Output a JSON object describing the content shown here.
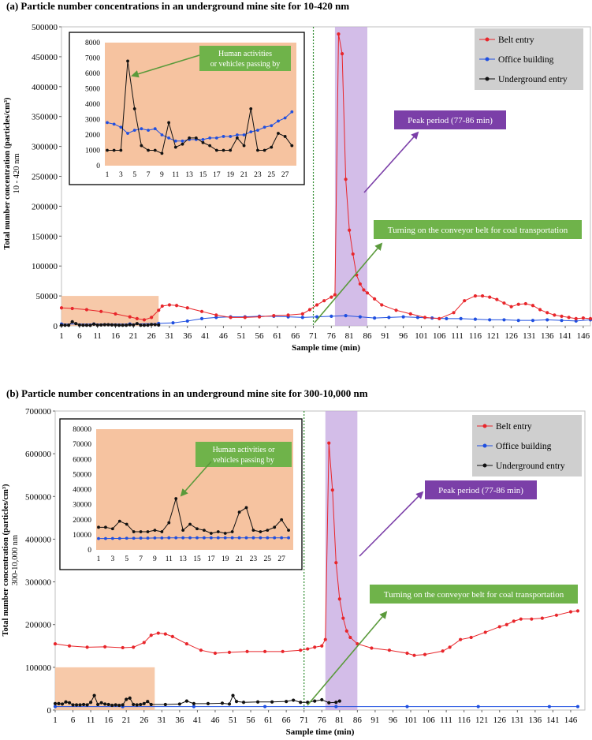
{
  "chart_data": [
    {
      "type": "line",
      "title": "(a) Particle number concentrations in an underground mine site for 10-420 nm",
      "xlabel": "Sample time (min)",
      "ylabel": "Total number concentration (particles/cm³)",
      "ylabel2": "10 - 420 nm",
      "ylim": [
        0,
        500000
      ],
      "y_ticks": [
        "0",
        "50000",
        "100000",
        "150000",
        "200000",
        "250000",
        "300000",
        "350000",
        "400000",
        "450000",
        "500000"
      ],
      "x_ticks": [
        "1",
        "6",
        "11",
        "16",
        "21",
        "26",
        "31",
        "36",
        "41",
        "46",
        "51",
        "56",
        "61",
        "66",
        "71",
        "76",
        "81",
        "86",
        "91",
        "96",
        "101",
        "106",
        "111",
        "116",
        "121",
        "126",
        "131",
        "136",
        "141",
        "146"
      ],
      "legend": [
        "Belt entry",
        "Office building",
        "Underground entry"
      ],
      "legend_position": "top-right",
      "series": [
        {
          "name": "Belt entry",
          "color": "#e8262b",
          "x": [
            1,
            4,
            8,
            12,
            16,
            20,
            22,
            24,
            26,
            28,
            29,
            31,
            33,
            36,
            40,
            44,
            48,
            52,
            56,
            60,
            64,
            68,
            70,
            72,
            74,
            76,
            77,
            78,
            79,
            80,
            81,
            82,
            83,
            84,
            85,
            86,
            88,
            90,
            94,
            98,
            102,
            106,
            110,
            113,
            116,
            118,
            120,
            122,
            124,
            126,
            128,
            130,
            132,
            134,
            136,
            138,
            140,
            142,
            144,
            146,
            148
          ],
          "values": [
            30000,
            29000,
            27000,
            24000,
            20000,
            15000,
            12000,
            10000,
            14000,
            26000,
            33000,
            35000,
            34000,
            30000,
            24000,
            18000,
            14000,
            14000,
            15000,
            17000,
            18000,
            20000,
            27000,
            35000,
            42000,
            48000,
            52000,
            488000,
            455000,
            245000,
            160000,
            120000,
            85000,
            70000,
            60000,
            55000,
            45000,
            35000,
            26000,
            20000,
            14000,
            12000,
            22000,
            42000,
            50000,
            50000,
            48000,
            44000,
            38000,
            32000,
            36000,
            37000,
            34000,
            27000,
            22000,
            18000,
            16000,
            14000,
            12000,
            13000,
            12000
          ]
        },
        {
          "name": "Office building",
          "color": "#1f4fe0",
          "x": [
            1,
            10,
            20,
            28,
            32,
            36,
            40,
            44,
            48,
            52,
            56,
            60,
            64,
            68,
            72,
            76,
            80,
            84,
            88,
            92,
            96,
            100,
            104,
            108,
            112,
            116,
            120,
            124,
            128,
            132,
            136,
            140,
            144,
            148
          ],
          "values": [
            3000,
            3000,
            3000,
            4000,
            5000,
            8000,
            12000,
            14000,
            15000,
            15000,
            16000,
            16000,
            15000,
            14000,
            15000,
            16000,
            17000,
            15000,
            13000,
            14000,
            15000,
            14000,
            13000,
            12000,
            12000,
            11000,
            10000,
            10000,
            9000,
            9000,
            10000,
            9000,
            8000,
            10000
          ]
        },
        {
          "name": "Underground entry",
          "color": "#111111",
          "x": [
            1,
            2,
            3,
            4,
            5,
            6,
            7,
            8,
            9,
            10,
            11,
            12,
            13,
            14,
            15,
            16,
            17,
            18,
            19,
            20,
            21,
            22,
            23,
            24,
            25,
            26,
            27,
            28
          ],
          "values": [
            1000,
            1000,
            1000,
            6800,
            3700,
            1300,
            1000,
            1000,
            800,
            2800,
            1200,
            1400,
            1800,
            1800,
            1500,
            1300,
            1000,
            1000,
            1000,
            1800,
            1300,
            3700,
            1000,
            1000,
            1200,
            2100,
            1900,
            1300
          ]
        }
      ],
      "inset": {
        "ylim": [
          0,
          8000
        ],
        "y_ticks": [
          "0",
          "1000",
          "2000",
          "3000",
          "4000",
          "5000",
          "6000",
          "7000",
          "8000"
        ],
        "x_ticks": [
          "1",
          "3",
          "5",
          "7",
          "9",
          "11",
          "13",
          "15",
          "17",
          "19",
          "21",
          "23",
          "25",
          "27"
        ],
        "series": [
          {
            "name": "Office building",
            "color": "#1f4fe0",
            "x": [
              1,
              2,
              3,
              4,
              5,
              6,
              7,
              8,
              9,
              10,
              11,
              12,
              13,
              14,
              15,
              16,
              17,
              18,
              19,
              20,
              21,
              22,
              23,
              24,
              25,
              26,
              27,
              28
            ],
            "values": [
              2800,
              2700,
              2500,
              2100,
              2300,
              2400,
              2300,
              2400,
              2000,
              1800,
              1600,
              1600,
              1700,
              1700,
              1700,
              1800,
              1800,
              1900,
              1900,
              2000,
              2000,
              2200,
              2300,
              2500,
              2600,
              2900,
              3100,
              3500
            ]
          },
          {
            "name": "Underground entry",
            "color": "#111111",
            "x": [
              1,
              2,
              3,
              4,
              5,
              6,
              7,
              8,
              9,
              10,
              11,
              12,
              13,
              14,
              15,
              16,
              17,
              18,
              19,
              20,
              21,
              22,
              23,
              24,
              25,
              26,
              27,
              28
            ],
            "values": [
              1000,
              1000,
              1000,
              6800,
              3700,
              1300,
              1000,
              1000,
              800,
              2800,
              1200,
              1400,
              1800,
              1800,
              1500,
              1300,
              1000,
              1000,
              1000,
              1800,
              1300,
              3700,
              1000,
              1000,
              1200,
              2100,
              1900,
              1300
            ]
          }
        ]
      },
      "annotations": {
        "human": "Human activities\nor vehicles passing by",
        "peak": "Peak period (77-86 min)",
        "conveyor": "Turning on the conveyor belt for coal transportation"
      },
      "peak_range": [
        77,
        86
      ],
      "conveyor_line_x": 71,
      "inset_region": {
        "x": [
          1,
          28
        ],
        "y": [
          0,
          50000
        ]
      }
    },
    {
      "type": "line",
      "title": "(b) Particle number concentrations in an underground mine site for 300-10,000 nm",
      "xlabel": "Sample time (min)",
      "ylabel": "Total number concentration (particles/cm³)",
      "ylabel2": "300-10,000 nm",
      "ylim": [
        0,
        700000
      ],
      "y_ticks": [
        "0",
        "100000",
        "200000",
        "300000",
        "400000",
        "500000",
        "600000",
        "700000"
      ],
      "x_ticks": [
        "1",
        "6",
        "11",
        "16",
        "21",
        "26",
        "31",
        "36",
        "41",
        "46",
        "51",
        "56",
        "61",
        "66",
        "71",
        "76",
        "81",
        "86",
        "91",
        "96",
        "101",
        "106",
        "111",
        "116",
        "121",
        "126",
        "131",
        "136",
        "141",
        "146"
      ],
      "legend": [
        "Belt entry",
        "Office building",
        "Underground entry"
      ],
      "legend_position": "top-right",
      "series": [
        {
          "name": "Belt entry",
          "color": "#e8262b",
          "x": [
            1,
            5,
            10,
            15,
            20,
            23,
            26,
            28,
            30,
            32,
            34,
            38,
            42,
            46,
            50,
            55,
            60,
            65,
            70,
            72,
            74,
            76,
            77,
            78,
            79,
            80,
            81,
            82,
            83,
            84,
            86,
            90,
            95,
            100,
            102,
            105,
            110,
            112,
            115,
            118,
            122,
            126,
            128,
            130,
            132,
            135,
            138,
            142,
            146,
            148
          ],
          "values": [
            155000,
            150000,
            147000,
            148000,
            146000,
            147000,
            158000,
            175000,
            180000,
            178000,
            172000,
            155000,
            140000,
            133000,
            135000,
            137000,
            137000,
            137000,
            140000,
            143000,
            147000,
            150000,
            165000,
            625000,
            515000,
            345000,
            260000,
            215000,
            185000,
            170000,
            155000,
            145000,
            140000,
            133000,
            128000,
            130000,
            138000,
            147000,
            165000,
            170000,
            182000,
            195000,
            200000,
            208000,
            213000,
            213000,
            215000,
            222000,
            230000,
            232000
          ]
        },
        {
          "name": "Office building",
          "color": "#1f4fe0",
          "x": [
            1,
            20,
            40,
            60,
            80,
            100,
            120,
            140,
            148
          ],
          "values": [
            8000,
            8000,
            8000,
            8000,
            8000,
            8000,
            8000,
            8000,
            8000
          ]
        },
        {
          "name": "Underground entry",
          "color": "#111111",
          "x": [
            1,
            2,
            3,
            4,
            5,
            6,
            7,
            8,
            9,
            10,
            11,
            12,
            13,
            14,
            15,
            16,
            17,
            18,
            19,
            20,
            21,
            22,
            23,
            24,
            25,
            26,
            27,
            28,
            32,
            36,
            38,
            40,
            44,
            48,
            50,
            51,
            52,
            54,
            58,
            62,
            66,
            68,
            70,
            72,
            74,
            76,
            78,
            80,
            81
          ],
          "values": [
            15000,
            15000,
            14000,
            19000,
            17000,
            12000,
            12000,
            12000,
            13000,
            12000,
            18000,
            34000,
            13000,
            17000,
            14000,
            13000,
            11000,
            12000,
            11000,
            12000,
            25000,
            28000,
            13000,
            12000,
            13000,
            15000,
            20000,
            13000,
            13000,
            14000,
            21000,
            15000,
            15000,
            16000,
            14000,
            34000,
            20000,
            18000,
            19000,
            19000,
            20000,
            23000,
            18000,
            18000,
            21000,
            24000,
            17000,
            18000,
            21000
          ]
        }
      ],
      "inset": {
        "ylim": [
          0,
          80000
        ],
        "y_ticks": [
          "0",
          "10000",
          "20000",
          "30000",
          "40000",
          "50000",
          "60000",
          "70000",
          "80000"
        ],
        "x_ticks": [
          "1",
          "3",
          "5",
          "7",
          "9",
          "11",
          "13",
          "15",
          "17",
          "19",
          "21",
          "23",
          "25",
          "27"
        ],
        "series": [
          {
            "name": "Office building",
            "color": "#1f4fe0",
            "x": [
              1,
              2,
              3,
              4,
              5,
              6,
              7,
              8,
              9,
              10,
              11,
              12,
              13,
              14,
              15,
              16,
              17,
              18,
              19,
              20,
              21,
              22,
              23,
              24,
              25,
              26,
              27,
              28
            ],
            "values": [
              7500,
              7500,
              7600,
              7600,
              7700,
              7700,
              7800,
              7800,
              7900,
              7900,
              8000,
              8000,
              8000,
              8000,
              8000,
              8000,
              8000,
              8000,
              8000,
              8000,
              8000,
              8000,
              8000,
              8000,
              8000,
              8000,
              8000,
              8000
            ]
          },
          {
            "name": "Underground entry",
            "color": "#111111",
            "x": [
              1,
              2,
              3,
              4,
              5,
              6,
              7,
              8,
              9,
              10,
              11,
              12,
              13,
              14,
              15,
              16,
              17,
              18,
              19,
              20,
              21,
              22,
              23,
              24,
              25,
              26,
              27,
              28
            ],
            "values": [
              15000,
              15000,
              14000,
              19000,
              17000,
              12000,
              12000,
              12000,
              13000,
              12000,
              18000,
              34000,
              13000,
              17000,
              14000,
              13000,
              11000,
              12000,
              11000,
              12000,
              25000,
              28000,
              13000,
              12000,
              13000,
              15000,
              20000,
              13000
            ]
          }
        ]
      },
      "annotations": {
        "human": "Human activities or\nvehicles passing by",
        "peak": "Peak period (77-86 min)",
        "conveyor": "Turning on the conveyor belt for coal transportation"
      },
      "peak_range": [
        77,
        86
      ],
      "conveyor_line_x": 71,
      "inset_region": {
        "x": [
          1,
          29
        ],
        "y": [
          0,
          100000
        ]
      }
    }
  ]
}
